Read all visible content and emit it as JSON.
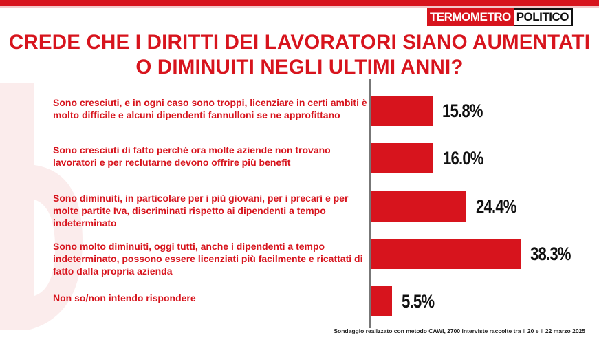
{
  "brand": {
    "part1": "TERMOMETRO",
    "part2": "POLITICO"
  },
  "colors": {
    "accent": "#d7141d",
    "text": "#111111"
  },
  "footnote": "Sondaggio realizzato con metodo CAWI, 2700 interviste raccolte tra il 20 e il 22 marzo 2025",
  "chart_data": {
    "type": "bar",
    "orientation": "horizontal",
    "title": "CREDE CHE I DIRITTI DEI LAVORATORI SIANO AUMENTATI O DIMINUITI NEGLI ULTIMI ANNI?",
    "categories": [
      "Sono cresciuti, e in ogni caso sono troppi, licenziare in certi ambiti è molto difficile e alcuni dipendenti fannulloni se ne approfittano",
      "Sono cresciuti di fatto perché ora molte aziende non trovano lavoratori e per reclutarne devono offrire più benefit",
      "Sono diminuiti, in particolare per i più giovani, per i precari e per molte partite Iva, discriminati rispetto ai dipendenti a tempo indeterminato",
      "Sono molto diminuiti, oggi tutti, anche i dipendenti a tempo indeterminato, possono essere licenziati più facilmente e ricattati di fatto dalla propria azienda",
      "Non so/non intendo rispondere"
    ],
    "values": [
      15.8,
      16.0,
      24.4,
      38.3,
      5.5
    ],
    "value_labels": [
      "15.8%",
      "16.0%",
      "24.4%",
      "38.3%",
      "5.5%"
    ],
    "grid": false,
    "legend": "none"
  }
}
